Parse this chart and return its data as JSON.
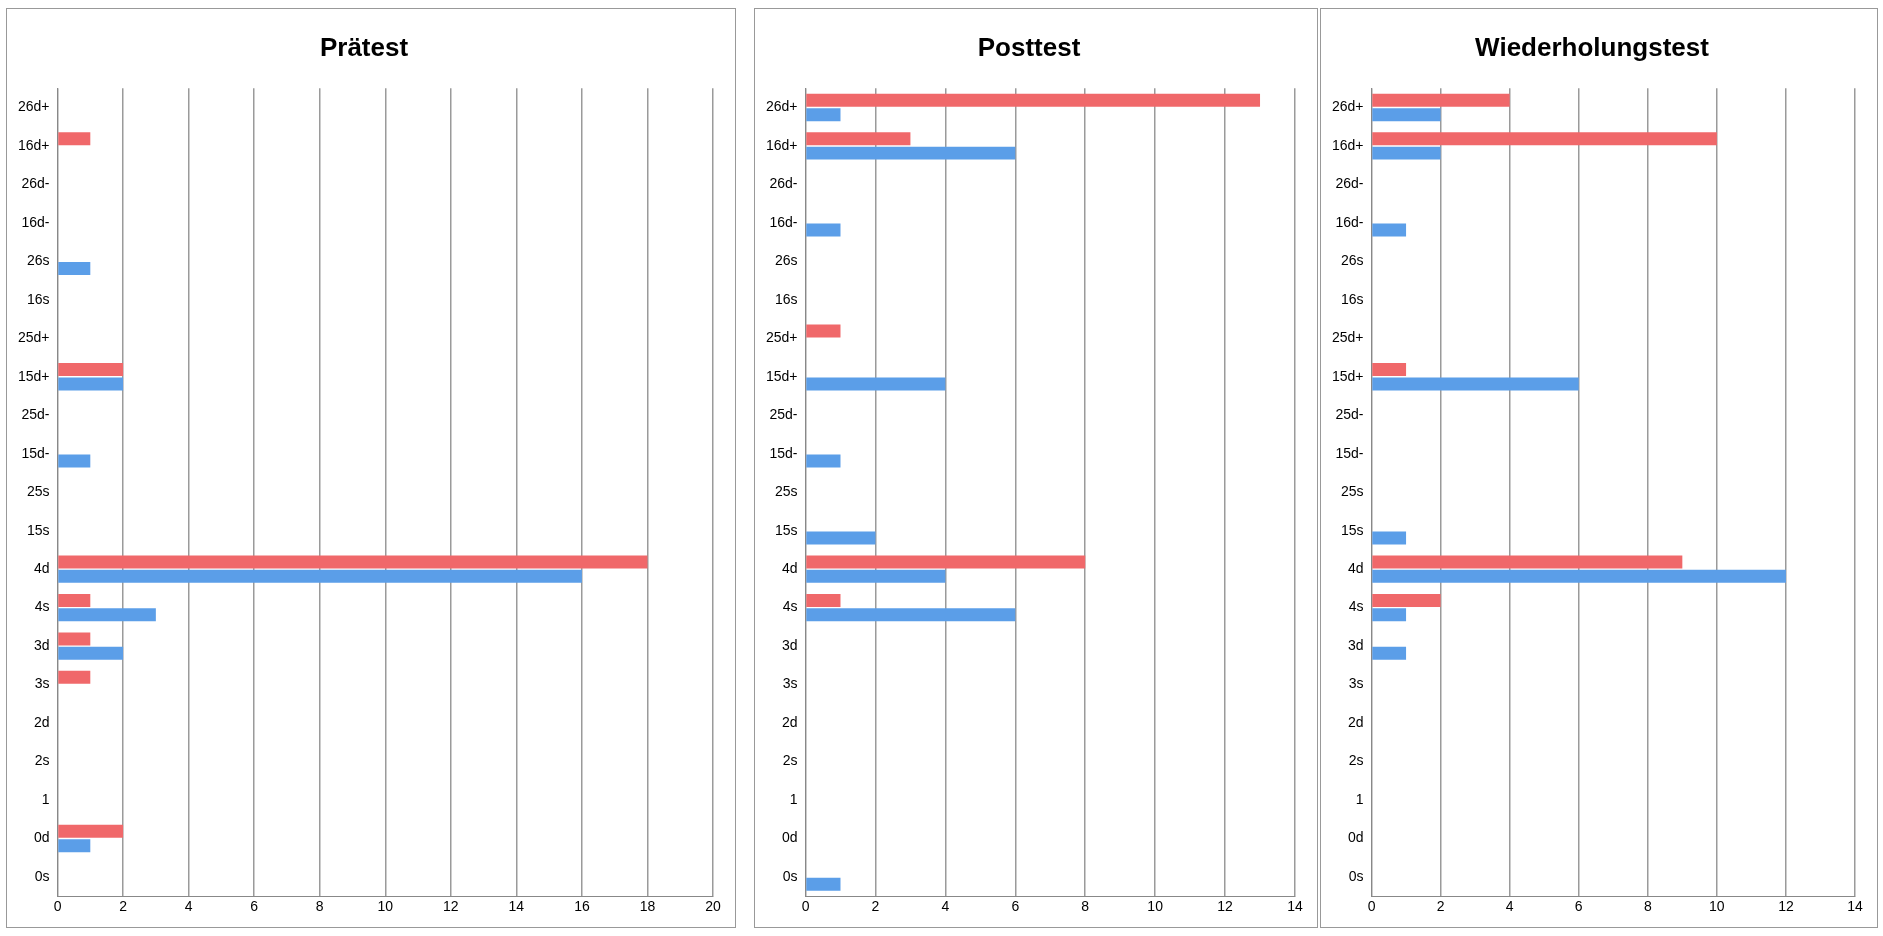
{
  "chart_data": [
    {
      "type": "bar",
      "orientation": "horizontal",
      "title": "Prätest",
      "categories": [
        "26d+",
        "16d+",
        "26d-",
        "16d-",
        "26s",
        "16s",
        "25d+",
        "15d+",
        "25d-",
        "15d-",
        "25s",
        "15s",
        "4d",
        "4s",
        "3d",
        "3s",
        "2d",
        "2s",
        "1",
        "0d",
        "0s"
      ],
      "series": [
        {
          "color": "#f0686a",
          "values": [
            0,
            1,
            0,
            0,
            0,
            0,
            0,
            2,
            0,
            0,
            0,
            0,
            18,
            1,
            1,
            1,
            0,
            0,
            0,
            2,
            0
          ]
        },
        {
          "color": "#5b9ee8",
          "values": [
            0,
            0,
            0,
            0,
            1,
            0,
            0,
            2,
            0,
            1,
            0,
            0,
            16,
            3,
            2,
            0,
            0,
            0,
            0,
            1,
            0
          ]
        }
      ],
      "xlim": [
        0,
        20
      ],
      "xticks": [
        0,
        2,
        4,
        6,
        8,
        10,
        12,
        14,
        16,
        18,
        20
      ],
      "grid": "x"
    },
    {
      "type": "bar",
      "orientation": "horizontal",
      "title": "Posttest",
      "categories": [
        "26d+",
        "16d+",
        "26d-",
        "16d-",
        "26s",
        "16s",
        "25d+",
        "15d+",
        "25d-",
        "15d-",
        "25s",
        "15s",
        "4d",
        "4s",
        "3d",
        "3s",
        "2d",
        "2s",
        "1",
        "0d",
        "0s"
      ],
      "series": [
        {
          "color": "#f0686a",
          "values": [
            13,
            3,
            0,
            0,
            0,
            0,
            1,
            0,
            0,
            0,
            0,
            0,
            8,
            1,
            0,
            0,
            0,
            0,
            0,
            0,
            0
          ]
        },
        {
          "color": "#5b9ee8",
          "values": [
            1,
            6,
            0,
            1,
            0,
            0,
            0,
            4,
            0,
            1,
            0,
            2,
            4,
            6,
            0,
            0,
            0,
            0,
            0,
            0,
            1
          ]
        }
      ],
      "xlim": [
        0,
        14
      ],
      "xticks": [
        0,
        2,
        4,
        6,
        8,
        10,
        12,
        14
      ],
      "grid": "x"
    },
    {
      "type": "bar",
      "orientation": "horizontal",
      "title": "Wiederholungstest",
      "categories": [
        "26d+",
        "16d+",
        "26d-",
        "16d-",
        "26s",
        "16s",
        "25d+",
        "15d+",
        "25d-",
        "15d-",
        "25s",
        "15s",
        "4d",
        "4s",
        "3d",
        "3s",
        "2d",
        "2s",
        "1",
        "0d",
        "0s"
      ],
      "series": [
        {
          "color": "#f0686a",
          "values": [
            4,
            10,
            0,
            0,
            0,
            0,
            0,
            1,
            0,
            0,
            0,
            0,
            9,
            2,
            0,
            0,
            0,
            0,
            0,
            0,
            0
          ]
        },
        {
          "color": "#5b9ee8",
          "values": [
            2,
            2,
            0,
            1,
            0,
            0,
            0,
            6,
            0,
            0,
            0,
            1,
            12,
            1,
            1,
            0,
            0,
            0,
            0,
            0,
            0
          ]
        }
      ],
      "xlim": [
        0,
        14
      ],
      "xticks": [
        0,
        2,
        4,
        6,
        8,
        10,
        12,
        14
      ],
      "grid": "x"
    }
  ]
}
